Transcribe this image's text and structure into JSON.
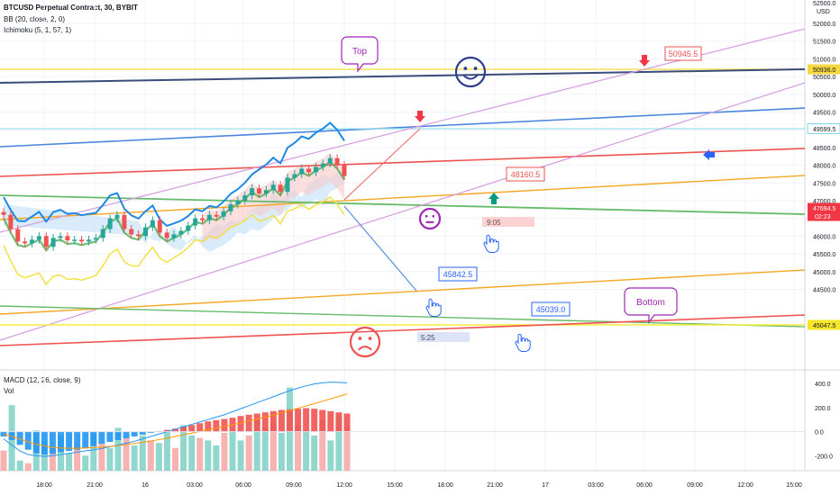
{
  "header": {
    "symbol_line": "BTCUSD Perpetual Contract, 30, BYBIT",
    "indicators": [
      "BB (20, close, 2, 0)",
      "Ichimoku (5, 1, 57, 1)"
    ]
  },
  "chart_data": [
    {
      "type": "candlestick",
      "title": "BTCUSD Perpetual Contract, 30, BYBIT",
      "currency": "USD",
      "yticks": [
        44500,
        45000,
        45500,
        46000,
        46500,
        47000,
        47500,
        48000,
        48500,
        49000,
        49500,
        50000,
        50500,
        51000,
        51500,
        52000
      ],
      "ytick_labels": [
        "44500.0",
        "45000.0",
        "45500.0",
        "46000.0",
        "46500.0",
        "47000.0",
        "47500.0",
        "48000.0",
        "48500.0",
        "49000.0",
        "49500.0",
        "50000.0",
        "50500.0",
        "51000.0",
        "51500.0",
        "52000.0"
      ],
      "top_label": "52500.0",
      "ylim": [
        44050,
        52300
      ],
      "xtick_labels": [
        "18:00",
        "21:00",
        "16",
        "03:00",
        "06:00",
        "09:00",
        "12:00",
        "15:00",
        "18:00",
        "21:00",
        "17",
        "03:00",
        "06:00",
        "09:00",
        "12:00",
        "15:00"
      ],
      "price_tags": [
        {
          "text": "50936.0",
          "bg": "#f5d742",
          "fg": "#131722"
        },
        {
          "text": "49599.5",
          "bg": "#ffffff",
          "fg": "#131722",
          "border": "#7fd8e8"
        },
        {
          "text": "47694.5",
          "bg": "#f23645",
          "fg": "#ffffff",
          "sub": "02:23"
        },
        {
          "text": "45047.5",
          "bg": "#f5e62a",
          "fg": "#131722"
        }
      ],
      "close_series": [
        46600,
        46200,
        45850,
        45800,
        45900,
        46000,
        45700,
        45950,
        46000,
        45880,
        45900,
        45850,
        45900,
        45950,
        46200,
        46500,
        46600,
        46200,
        46050,
        46000,
        46250,
        46450,
        46100,
        45950,
        46050,
        46150,
        46300,
        46500,
        46450,
        46600,
        46550,
        46700,
        46900,
        47000,
        47150,
        47350,
        47200,
        47300,
        47450,
        47250,
        47650,
        47750,
        47900,
        47800,
        47950,
        48050,
        48200,
        48000,
        47694.5
      ],
      "annotations": {
        "callouts": [
          "Top",
          "Bottom"
        ],
        "price_boxes": [
          "50945.5",
          "48160.5",
          "45842.5",
          "45039.0"
        ],
        "time_boxes": [
          "9:05",
          "5:25"
        ]
      }
    },
    {
      "type": "bar+line",
      "title": "MACD (12, 26, close, 9)",
      "subtitle": "Vol",
      "yticks": [
        400,
        200,
        0,
        -200
      ],
      "ytick_labels": [
        "400.0",
        "200.0",
        "0.0",
        "-200.0"
      ],
      "ylim": [
        -310,
        450
      ],
      "histogram": [
        -40,
        -70,
        -110,
        -150,
        -180,
        -190,
        -185,
        -170,
        -160,
        -150,
        -140,
        -120,
        -100,
        -85,
        -70,
        -55,
        -40,
        -25,
        -10,
        5,
        15,
        25,
        40,
        55,
        70,
        85,
        95,
        105,
        115,
        130,
        140,
        150,
        160,
        170,
        180,
        185,
        190,
        195,
        190,
        180,
        170,
        160,
        150
      ],
      "series": [
        {
          "values": [
            -60,
            -110,
            -160,
            -190,
            -200,
            -205,
            -200,
            -190,
            -180,
            -170,
            -160,
            -150,
            -140,
            -125,
            -110,
            -95,
            -80,
            -60,
            -40,
            -20,
            0,
            20,
            40,
            60,
            80,
            100,
            120,
            140,
            165,
            190,
            215,
            240,
            265,
            290,
            315,
            340,
            360,
            380,
            395,
            405,
            410,
            408,
            405
          ]
        },
        {
          "values": [
            -20,
            -40,
            -60,
            -85,
            -105,
            -120,
            -130,
            -135,
            -138,
            -138,
            -135,
            -132,
            -128,
            -122,
            -115,
            -107,
            -98,
            -88,
            -78,
            -66,
            -54,
            -40,
            -26,
            -12,
            2,
            16,
            30,
            44,
            58,
            72,
            88,
            104,
            120,
            138,
            156,
            175,
            194,
            213,
            232,
            252,
            272,
            292,
            312
          ]
        }
      ],
      "volume": [
        80,
        260,
        40,
        30,
        160,
        120,
        90,
        140,
        70,
        100,
        60,
        150,
        110,
        90,
        170,
        130,
        100,
        140,
        120,
        110,
        160,
        90,
        180,
        140,
        130,
        120,
        100,
        150,
        160,
        120,
        140,
        200,
        170,
        190,
        150,
        330,
        180,
        160,
        140,
        200,
        120,
        220,
        170
      ]
    }
  ]
}
